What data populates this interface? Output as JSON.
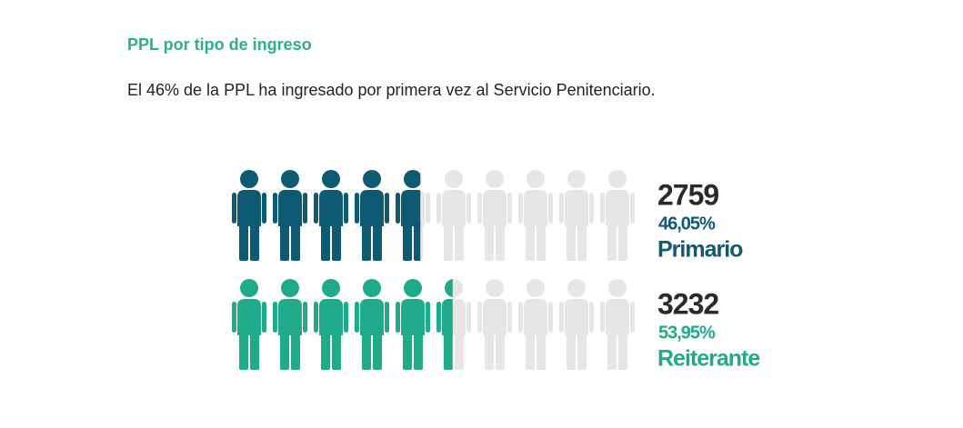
{
  "chart_data": {
    "type": "pictogram",
    "title": "PPL por tipo de ingreso",
    "subtitle": "El 46% de la PPL ha ingresado por primera vez al Servicio Penitenciario.",
    "categories": [
      "Primario",
      "Reiterante"
    ],
    "counts": [
      2759,
      3232
    ],
    "values": [
      46.05,
      53.95
    ],
    "value_labels": [
      "46,05%",
      "53,95%"
    ],
    "colors": [
      "#0e5a73",
      "#1fab89"
    ],
    "empty_color": "#e6e6e6",
    "title_color": "#2bb08c",
    "xlim": [
      0,
      100
    ]
  }
}
